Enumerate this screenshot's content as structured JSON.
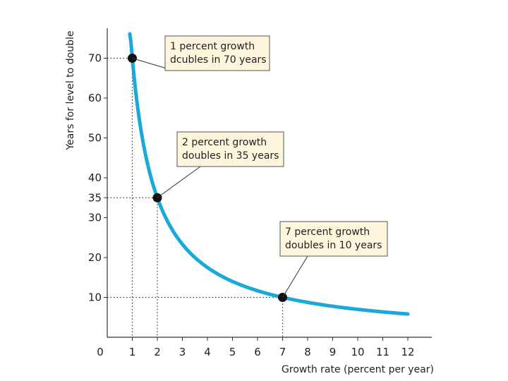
{
  "chart_data": {
    "type": "line",
    "title": "",
    "xlabel": "Growth rate (percent per year)",
    "ylabel": "Years for level to double",
    "xlim": [
      0,
      12.8
    ],
    "ylim": [
      0,
      78.5
    ],
    "x_ticks": [
      "0",
      "1",
      "2",
      "3",
      "4",
      "5",
      "6",
      "7",
      "8",
      "9",
      "10",
      "11",
      "12"
    ],
    "y_ticks": [
      {
        "value": 10,
        "label": "10"
      },
      {
        "value": 20,
        "label": "20"
      },
      {
        "value": 30,
        "label": "30"
      },
      {
        "value": 35,
        "label": "35"
      },
      {
        "value": 40,
        "label": "40"
      },
      {
        "value": 50,
        "label": "50"
      },
      {
        "value": 60,
        "label": "60"
      },
      {
        "value": 70,
        "label": "70"
      }
    ],
    "curve": {
      "name": "Years to double = 70 / growth rate",
      "rule_numerator": 70,
      "x_start": 0.9,
      "x_end": 12,
      "color": "#1aa9d8"
    },
    "highlighted_points": [
      {
        "x": 1,
        "y": 70,
        "label_lines": [
          "1 percent growth",
          "dcubles in 70 years"
        ]
      },
      {
        "x": 2,
        "y": 35,
        "label_lines": [
          "2 percent growth",
          "doubles in 35 years"
        ]
      },
      {
        "x": 7,
        "y": 10,
        "label_lines": [
          "7 percent growth",
          "doubles in 10 years"
        ]
      }
    ],
    "grid": false,
    "callout_fill": "#fdf5dc",
    "axis_color": "#333333"
  }
}
